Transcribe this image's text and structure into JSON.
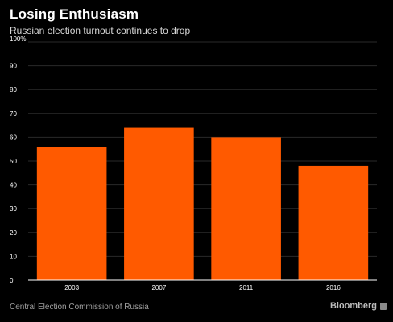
{
  "header": {
    "title": "Losing Enthusiasm",
    "subtitle": "Russian election turnout continues to drop"
  },
  "footer": {
    "source": "Central Election Commission of Russia",
    "brand": "Bloomberg"
  },
  "colors": {
    "background": "#000000",
    "bar": "#ff5a00",
    "grid": "#2a2a2a",
    "text": "#ffffff"
  },
  "chart_data": {
    "type": "bar",
    "categories": [
      "2003",
      "2007",
      "2011",
      "2016"
    ],
    "values": [
      56,
      64,
      60,
      48
    ],
    "title": "Losing Enthusiasm",
    "subtitle": "Russian election turnout continues to drop",
    "ylim": [
      0,
      100
    ],
    "yticks": [
      0,
      10,
      20,
      30,
      40,
      50,
      60,
      70,
      80,
      90,
      100
    ],
    "ytick_labels": [
      "0",
      "10",
      "20",
      "30",
      "40",
      "50",
      "60",
      "70",
      "80",
      "90",
      "100%"
    ],
    "grid": true,
    "legend": "none"
  }
}
